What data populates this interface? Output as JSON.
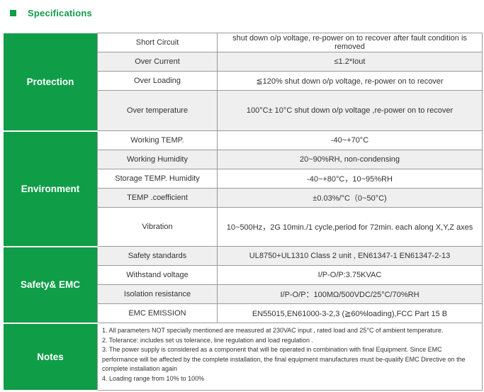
{
  "header": {
    "title": "Specifications",
    "accent_color": "#0f9d48"
  },
  "groups": [
    {
      "name": "Protection",
      "rows": [
        {
          "label": "Short Circuit",
          "value": "shut down o/p voltage, re-power on to recover after fault condition is removed"
        },
        {
          "label": "Over Current",
          "value": "≤1.2*Iout"
        },
        {
          "label": "Over Loading",
          "value": "≦120% shut down o/p voltage, re-power on to recover"
        },
        {
          "label": "Over temperature",
          "value": "100°C± 10°C shut down o/p voltage ,re-power on to recover"
        }
      ]
    },
    {
      "name": "Environment",
      "rows": [
        {
          "label": "Working TEMP.",
          "value": "-40~+70°C"
        },
        {
          "label": "Working Humidity",
          "value": "20~90%RH, non-condensing"
        },
        {
          "label": "Storage TEMP. Humidity",
          "value": "-40~+80°C，10~95%RH"
        },
        {
          "label": "TEMP .coefficient",
          "value": "±0.03%/°C（0~50°C)"
        },
        {
          "label": "Vibration",
          "value": "10~500Hz，2G 10min./1 cycle,period for 72min. each along X,Y,Z axes"
        }
      ]
    },
    {
      "name": "Safety& EMC",
      "rows": [
        {
          "label": "Safety standards",
          "value": "UL8750+UL1310 Class 2 unit , EN61347-1 EN61347-2-13"
        },
        {
          "label": "Withstand voltage",
          "value": "I/P-O/P:3.75KVAC"
        },
        {
          "label": "Isolation resistance",
          "value": "I/P-O/P：100MΩ/500VDC/25°C/70%RH"
        },
        {
          "label": "EMC EMISSION",
          "value": "EN55015,EN61000-3-2,3 (≧60%loading),FCC Part 15 B"
        }
      ]
    }
  ],
  "notes": {
    "name": "Notes",
    "items": [
      "1. All parameters NOT specially mentioned are measured at 230VAC input , rated load and 25°C of ambient temperature.",
      "2. Tolerance: includes set us tolerance, line regulation and load regulation .",
      "3. The power supply is considered as a component that will be operated in combination with final Equipment. Since EMC performance will be affected by the complete installation, the final  equipment manufactures must be-qualify EMC Directive on the complete installation again",
      "4. Loading range from 10% to 100%"
    ]
  }
}
